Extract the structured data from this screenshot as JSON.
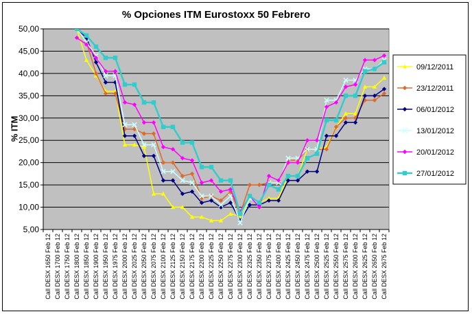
{
  "chart_data": {
    "type": "line",
    "title": "% Opciones ITM Eurostoxx 50 Febrero",
    "ylabel": "% ITM",
    "xlabel": "",
    "ylim": [
      5,
      50
    ],
    "yticks": [
      "5,00",
      "10,00",
      "15,00",
      "20,00",
      "25,00",
      "30,00",
      "35,00",
      "40,00",
      "45,00",
      "50,00"
    ],
    "grid": true,
    "legend_position": "right",
    "categories": [
      "Call DESX 1650 Feb 12",
      "Call DESX 1700 Feb 12",
      "Call DESX 1750 Feb 12",
      "Call DESX 1800 Feb 12",
      "Call DESX 1850 Feb 12",
      "Call DESX 1900 Feb 12",
      "Call DESX 1950 Feb 12",
      "Call DESX 1975 Feb 12",
      "Call DESX 2000 Feb 12",
      "Call DESX 2025 Feb 12",
      "Call DESX 2050 Feb 12",
      "Call DESX 2075 Feb 12",
      "Call DESX 2100 Feb 12",
      "Call DESX 2125 Feb 12",
      "Call DESX 2150 Feb 12",
      "Call DESX 2175 Feb 12",
      "Call DESX 2200 Feb 12",
      "Call DESX 2225 Feb 12",
      "Call DESX 2250 Feb 12",
      "Call DESX 2275 Feb 12",
      "Call DESX 2300 Feb 12",
      "Call DESX 2325 Feb 12",
      "Call DESX 2350 Feb 12",
      "Call DESX 2375 Feb 12",
      "Call DESX 2400 Feb 12",
      "Call DESX 2425 Feb 12",
      "Call DESX 2450 Feb 12",
      "Call DESX 2475 Feb 12",
      "Call DESX 2500 Feb 12",
      "Call DESX 2525 Feb 12",
      "Call DESX 2550 Feb 12",
      "Call DESX 2575 Feb 12",
      "Call DESX 2600 Feb 12",
      "Call DESX 2625 Feb 12",
      "Call DESX 2650 Feb 12",
      "Call DESX 2675 Feb 12"
    ],
    "series": [
      {
        "name": "09/12/2011",
        "color": "#FFFF00",
        "marker": "triangle",
        "values": [
          null,
          null,
          null,
          50.0,
          43.0,
          39.5,
          36.0,
          36.0,
          24.0,
          24.0,
          23.5,
          13.0,
          13.0,
          10.0,
          10.0,
          7.8,
          7.8,
          7.0,
          7.0,
          8.5,
          8.0,
          12.0,
          11.0,
          12.0,
          12.0,
          17.0,
          17.0,
          23.0,
          23.0,
          23.5,
          28.0,
          31.0,
          31.0,
          37.0,
          37.0,
          39.0
        ]
      },
      {
        "name": "23/12/2011",
        "color": "#E0682A",
        "marker": "diamond",
        "values": [
          null,
          null,
          null,
          50.0,
          47.0,
          40.0,
          35.5,
          35.5,
          27.5,
          27.5,
          26.5,
          26.5,
          20.0,
          20.0,
          17.0,
          17.5,
          12.0,
          12.5,
          11.5,
          13.5,
          8.5,
          15.0,
          15.0,
          15.5,
          15.5,
          20.5,
          20.5,
          23.0,
          23.0,
          23.0,
          28.0,
          30.0,
          30.0,
          34.0,
          34.0,
          35.5
        ]
      },
      {
        "name": "06/01/2012",
        "color": "#000080",
        "marker": "diamond",
        "values": [
          null,
          null,
          null,
          50.0,
          48.0,
          42.5,
          38.0,
          38.0,
          26.0,
          26.0,
          21.5,
          21.5,
          16.0,
          16.0,
          13.0,
          13.5,
          11.0,
          11.5,
          10.0,
          11.0,
          7.0,
          10.5,
          10.5,
          11.5,
          11.5,
          16.0,
          16.0,
          18.0,
          18.0,
          26.0,
          26.0,
          29.0,
          29.0,
          35.0,
          35.0,
          36.5
        ]
      },
      {
        "name": "13/01/2012",
        "color": "#CCFFFF",
        "marker": "x",
        "values": [
          null,
          null,
          null,
          50.0,
          47.0,
          44.0,
          39.5,
          39.5,
          28.5,
          28.5,
          24.0,
          24.0,
          18.0,
          18.0,
          16.0,
          15.5,
          12.5,
          12.5,
          10.5,
          12.5,
          6.5,
          12.0,
          11.0,
          15.5,
          15.5,
          21.0,
          21.0,
          23.0,
          23.0,
          34.0,
          34.0,
          38.5,
          38.5,
          41.0,
          41.0,
          43.0
        ]
      },
      {
        "name": "20/01/2012",
        "color": "#FF00FF",
        "marker": "diamond",
        "values": [
          null,
          null,
          null,
          48.0,
          46.5,
          43.5,
          40.5,
          40.5,
          33.5,
          33.0,
          29.0,
          29.0,
          23.5,
          23.0,
          21.0,
          20.5,
          15.5,
          16.0,
          13.5,
          14.0,
          9.0,
          12.5,
          10.0,
          17.0,
          16.0,
          20.0,
          20.0,
          25.0,
          25.0,
          32.5,
          33.5,
          37.0,
          37.5,
          43.0,
          43.0,
          44.0
        ]
      },
      {
        "name": "27/01/2012",
        "color": "#33CCCC",
        "marker": "square",
        "values": [
          null,
          null,
          null,
          50.0,
          48.5,
          46.0,
          43.5,
          43.5,
          37.5,
          37.5,
          33.5,
          33.5,
          28.0,
          28.0,
          24.5,
          24.5,
          19.0,
          19.0,
          16.0,
          16.0,
          8.5,
          12.5,
          11.0,
          15.0,
          14.0,
          17.0,
          17.0,
          21.0,
          22.0,
          29.5,
          29.5,
          35.0,
          35.0,
          40.5,
          41.0,
          42.5
        ]
      }
    ]
  }
}
